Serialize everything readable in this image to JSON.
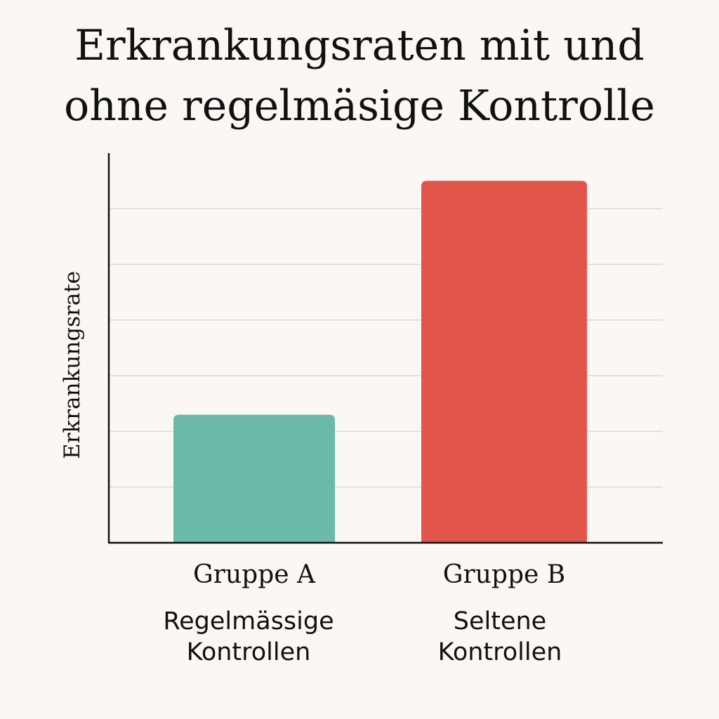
{
  "chart_data": {
    "type": "bar",
    "title": [
      "Erkrankungsraten mit und",
      "ohne regelmäsige Kontrolle"
    ],
    "ylabel": "Erkrankungsrate",
    "xlabel": "",
    "ylim": [
      0,
      7
    ],
    "grid": true,
    "categories": [
      "Gruppe A",
      "Gruppe B"
    ],
    "category_descriptions": [
      [
        "Regelmässige",
        "Kontrollen"
      ],
      [
        "Seltene",
        "Kontrollen"
      ]
    ],
    "values": [
      2.3,
      6.5
    ],
    "colors": [
      "#6bb9a9",
      "#e2554a"
    ]
  }
}
